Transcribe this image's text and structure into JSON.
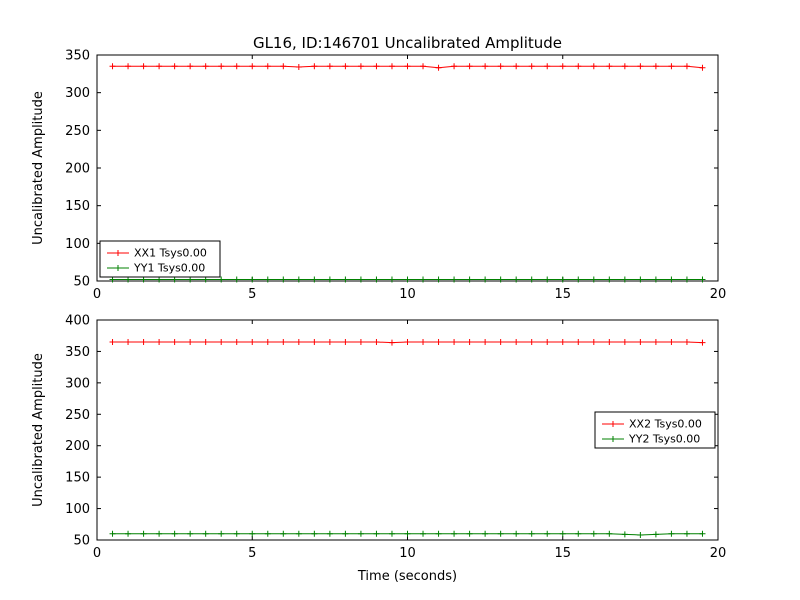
{
  "figure": {
    "title": "GL16, ID:146701 Uncalibrated Amplitude",
    "background": "#ffffff",
    "axis_color": "#000000"
  },
  "chart_data": [
    {
      "type": "line",
      "title": "GL16, ID:146701 Uncalibrated Amplitude",
      "xlabel": "",
      "ylabel": "Uncalibrated Amplitude",
      "xlim": [
        0,
        20
      ],
      "ylim": [
        50,
        350
      ],
      "xticks": [
        0,
        5,
        10,
        15,
        20
      ],
      "yticks": [
        50,
        100,
        150,
        200,
        250,
        300,
        350
      ],
      "grid": false,
      "legend_position": "lower-left",
      "x": [
        0.5,
        1,
        1.5,
        2,
        2.5,
        3,
        3.5,
        4,
        4.5,
        5,
        5.5,
        6,
        6.5,
        7,
        7.5,
        8,
        8.5,
        9,
        9.5,
        10,
        10.5,
        11,
        11.5,
        12,
        12.5,
        13,
        13.5,
        14,
        14.5,
        15,
        15.5,
        16,
        16.5,
        17,
        17.5,
        18,
        18.5,
        19,
        19.5
      ],
      "series": [
        {
          "name": "XX1 Tsys0.00",
          "color": "#ff0000",
          "marker": "plus",
          "values": [
            335,
            335,
            335,
            335,
            335,
            335,
            335,
            335,
            335,
            335,
            335,
            335,
            334,
            335,
            335,
            335,
            335,
            335,
            335,
            335,
            335,
            333,
            335,
            335,
            335,
            335,
            335,
            335,
            335,
            335,
            335,
            335,
            335,
            335,
            335,
            335,
            335,
            335,
            333
          ]
        },
        {
          "name": "YY1 Tsys0.00",
          "color": "#008000",
          "marker": "plus",
          "values": [
            52,
            52,
            52,
            52,
            52,
            52,
            52,
            52,
            52,
            52,
            52,
            52,
            52,
            52,
            52,
            52,
            52,
            52,
            52,
            52,
            52,
            52,
            52,
            52,
            52,
            52,
            52,
            52,
            52,
            52,
            52,
            52,
            52,
            52,
            52,
            52,
            52,
            52,
            52
          ]
        }
      ]
    },
    {
      "type": "line",
      "title": "",
      "xlabel": "Time (seconds)",
      "ylabel": "Uncalibrated Amplitude",
      "xlim": [
        0,
        20
      ],
      "ylim": [
        50,
        400
      ],
      "xticks": [
        0,
        5,
        10,
        15,
        20
      ],
      "yticks": [
        50,
        100,
        150,
        200,
        250,
        300,
        350,
        400
      ],
      "grid": false,
      "legend_position": "center-right",
      "x": [
        0.5,
        1,
        1.5,
        2,
        2.5,
        3,
        3.5,
        4,
        4.5,
        5,
        5.5,
        6,
        6.5,
        7,
        7.5,
        8,
        8.5,
        9,
        9.5,
        10,
        10.5,
        11,
        11.5,
        12,
        12.5,
        13,
        13.5,
        14,
        14.5,
        15,
        15.5,
        16,
        16.5,
        17,
        17.5,
        18,
        18.5,
        19,
        19.5
      ],
      "series": [
        {
          "name": "XX2 Tsys0.00",
          "color": "#ff0000",
          "marker": "plus",
          "values": [
            365,
            365,
            365,
            365,
            365,
            365,
            365,
            365,
            365,
            365,
            365,
            365,
            365,
            365,
            365,
            365,
            365,
            365,
            364,
            365,
            365,
            365,
            365,
            365,
            365,
            365,
            365,
            365,
            365,
            365,
            365,
            365,
            365,
            365,
            365,
            365,
            365,
            365,
            364
          ]
        },
        {
          "name": "YY2 Tsys0.00",
          "color": "#008000",
          "marker": "plus",
          "values": [
            60,
            60,
            60,
            60,
            60,
            60,
            60,
            60,
            60,
            60,
            60,
            60,
            60,
            60,
            60,
            60,
            60,
            60,
            60,
            60,
            60,
            60,
            60,
            60,
            60,
            60,
            60,
            60,
            60,
            60,
            60,
            60,
            60,
            59,
            58,
            59,
            60,
            60,
            60
          ]
        }
      ]
    }
  ]
}
